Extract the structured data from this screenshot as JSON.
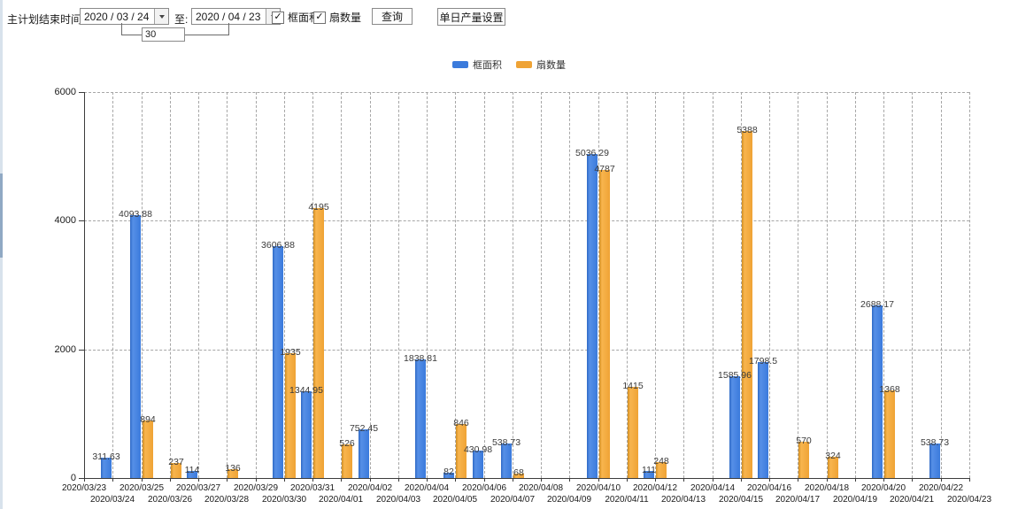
{
  "toolbar": {
    "label_end_time": "主计划结束时间:",
    "date_from": "2020 / 03 / 24",
    "label_to": "至:",
    "date_to": "2020 / 04 / 23",
    "days_value": "30",
    "checkbox_frame_area": "框面积",
    "checkbox_sash_count": "扇数量",
    "query_button": "查询",
    "daily_output_button": "单日产量设置"
  },
  "legend": {
    "series1": "框面积",
    "series2": "扇数量"
  },
  "colors": {
    "frame_area": "#3B7BDC",
    "sash_count": "#EFA335",
    "axis": "#3C3C3C",
    "grid": "#A6A6A6"
  },
  "chart_data": {
    "type": "bar",
    "title": "",
    "xlabel": "",
    "ylabel": "",
    "ylim": [
      0,
      6000
    ],
    "yticks": [
      0,
      2000,
      4000,
      6000
    ],
    "grid": "dashed",
    "legend_position": "top-center",
    "categories": [
      "2020/03/23",
      "2020/03/24",
      "2020/03/25",
      "2020/03/26",
      "2020/03/27",
      "2020/03/28",
      "2020/03/29",
      "2020/03/30",
      "2020/03/31",
      "2020/04/01",
      "2020/04/02",
      "2020/04/03",
      "2020/04/04",
      "2020/04/05",
      "2020/04/06",
      "2020/04/07",
      "2020/04/08",
      "2020/04/09",
      "2020/04/10",
      "2020/04/11",
      "2020/04/12",
      "2020/04/13",
      "2020/04/14",
      "2020/04/15",
      "2020/04/16",
      "2020/04/17",
      "2020/04/18",
      "2020/04/19",
      "2020/04/20",
      "2020/04/21",
      "2020/04/22",
      "2020/04/23"
    ],
    "series": [
      {
        "name": "框面积",
        "color": "#3B7BDC",
        "values": [
          null,
          311.63,
          4093.88,
          null,
          114,
          null,
          null,
          3606.88,
          1344.95,
          null,
          752.45,
          null,
          1838.81,
          82,
          430.98,
          538.73,
          null,
          null,
          5036.29,
          null,
          111,
          null,
          null,
          1585.96,
          1798.5,
          null,
          null,
          null,
          2688.17,
          null,
          538.73,
          null
        ]
      },
      {
        "name": "扇数量",
        "color": "#EFA335",
        "values": [
          null,
          null,
          894,
          237,
          null,
          136,
          null,
          1935,
          4195,
          526,
          null,
          null,
          null,
          846,
          null,
          68,
          null,
          null,
          4787,
          1415,
          248,
          null,
          null,
          5388,
          null,
          570,
          324,
          null,
          1368,
          null,
          null,
          null
        ]
      }
    ]
  }
}
